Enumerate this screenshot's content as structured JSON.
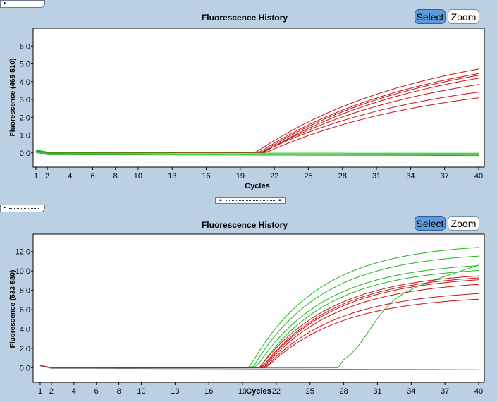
{
  "panels": [
    {
      "title": "Fluorescence History",
      "select_label": "Select",
      "zoom_label": "Zoom",
      "chart_data": {
        "type": "line",
        "title": "Fluorescence History",
        "xlabel": "Cycles",
        "ylabel": "Fluorescence (465-510)",
        "x_ticks": [
          1,
          2,
          4,
          6,
          8,
          10,
          13,
          16,
          19,
          22,
          25,
          28,
          31,
          34,
          37,
          40
        ],
        "y_ticks": [
          0.0,
          1.0,
          2.0,
          3.0,
          4.0,
          5.0,
          6.0
        ],
        "y_tick_labels": [
          "0.0",
          "1.0",
          "2.0",
          "3.0",
          "4.0",
          "5.0",
          "6.0"
        ],
        "xlim": [
          1,
          40
        ],
        "ylim": [
          -0.8,
          7.0
        ],
        "series": [
          {
            "name": "red-1",
            "color": "#c81414",
            "shape": "sigmoid",
            "start": 0.0,
            "plateau": 6.4,
            "threshold": 20.3,
            "rate": 0.075
          },
          {
            "name": "red-2",
            "color": "#c81414",
            "shape": "sigmoid",
            "start": 0.0,
            "plateau": 6.1,
            "threshold": 20.6,
            "rate": 0.075
          },
          {
            "name": "red-3",
            "color": "#c81414",
            "shape": "sigmoid",
            "start": 0.0,
            "plateau": 6.0,
            "threshold": 20.8,
            "rate": 0.075
          },
          {
            "name": "red-4",
            "color": "#c81414",
            "shape": "sigmoid",
            "start": 0.0,
            "plateau": 5.8,
            "threshold": 21.0,
            "rate": 0.075
          },
          {
            "name": "red-5",
            "color": "#c81414",
            "shape": "sigmoid",
            "start": 0.0,
            "plateau": 5.3,
            "threshold": 20.9,
            "rate": 0.075
          },
          {
            "name": "red-6",
            "color": "#c81414",
            "shape": "sigmoid",
            "start": 0.0,
            "plateau": 4.7,
            "threshold": 20.8,
            "rate": 0.075
          },
          {
            "name": "red-7",
            "color": "#c81414",
            "shape": "sigmoid",
            "start": 0.0,
            "plateau": 4.3,
            "threshold": 21.2,
            "rate": 0.075
          },
          {
            "name": "green-1",
            "color": "#1db81d",
            "shape": "flat",
            "start": 0.05,
            "end": 0.05
          },
          {
            "name": "green-2",
            "color": "#1db81d",
            "shape": "flat",
            "start": 0.0,
            "end": -0.02
          },
          {
            "name": "green-3",
            "color": "#1db81d",
            "shape": "flat",
            "start": -0.05,
            "end": -0.1
          },
          {
            "name": "green-4",
            "color": "#1db81d",
            "shape": "flat",
            "start": -0.1,
            "end": -0.15
          }
        ]
      }
    },
    {
      "title": "Fluorescence History",
      "select_label": "Select",
      "zoom_label": "Zoom",
      "chart_data": {
        "type": "line",
        "title": "Fluorescence History",
        "xlabel": "Cycles",
        "ylabel": "Fluorescence (533-580)",
        "x_ticks": [
          1,
          2,
          4,
          6,
          8,
          10,
          13,
          16,
          19,
          22,
          25,
          28,
          31,
          34,
          37,
          40
        ],
        "y_ticks": [
          0.0,
          2.0,
          4.0,
          6.0,
          8.0,
          10.0,
          12.0
        ],
        "y_tick_labels": [
          "0.0",
          "2.0",
          "4.0",
          "6.0",
          "8.0",
          "10.0",
          "12.0"
        ],
        "xlim": [
          1,
          40
        ],
        "ylim": [
          -1.5,
          13.8
        ],
        "series": [
          {
            "name": "green-1",
            "color": "#1db81d",
            "shape": "sigmoid",
            "start": 0.0,
            "plateau": 12.9,
            "threshold": 19.6,
            "rate": 0.18
          },
          {
            "name": "green-2",
            "color": "#1db81d",
            "shape": "sigmoid",
            "start": 0.0,
            "plateau": 12.0,
            "threshold": 19.9,
            "rate": 0.18
          },
          {
            "name": "green-3",
            "color": "#1db81d",
            "shape": "sigmoid",
            "start": 0.0,
            "plateau": 11.0,
            "threshold": 20.2,
            "rate": 0.18
          },
          {
            "name": "green-4",
            "color": "#1db81d",
            "shape": "sigmoid",
            "start": 0.0,
            "plateau": 10.5,
            "threshold": 20.5,
            "rate": 0.18
          },
          {
            "name": "green-late",
            "color": "#1db81d",
            "shape": "late",
            "start": 0.0,
            "plateau": 10.6,
            "threshold": 27.5,
            "rate": 0.33
          },
          {
            "name": "red-1",
            "color": "#c81414",
            "shape": "sigmoid",
            "start": 0.0,
            "plateau": 10.0,
            "threshold": 20.5,
            "rate": 0.17
          },
          {
            "name": "red-2",
            "color": "#c81414",
            "shape": "sigmoid",
            "start": 0.0,
            "plateau": 9.8,
            "threshold": 20.7,
            "rate": 0.17
          },
          {
            "name": "red-3",
            "color": "#c81414",
            "shape": "sigmoid",
            "start": 0.0,
            "plateau": 9.6,
            "threshold": 20.8,
            "rate": 0.17
          },
          {
            "name": "red-4",
            "color": "#c81414",
            "shape": "sigmoid",
            "start": 0.0,
            "plateau": 9.1,
            "threshold": 20.9,
            "rate": 0.17
          },
          {
            "name": "red-5",
            "color": "#c81414",
            "shape": "sigmoid",
            "start": 0.0,
            "plateau": 8.1,
            "threshold": 21.0,
            "rate": 0.17
          },
          {
            "name": "red-6",
            "color": "#c81414",
            "shape": "sigmoid",
            "start": 0.0,
            "plateau": 7.5,
            "threshold": 21.1,
            "rate": 0.17
          },
          {
            "name": "gray-neg",
            "color": "#777777",
            "shape": "flat",
            "start": -0.05,
            "end": -0.2
          }
        ]
      }
    }
  ]
}
